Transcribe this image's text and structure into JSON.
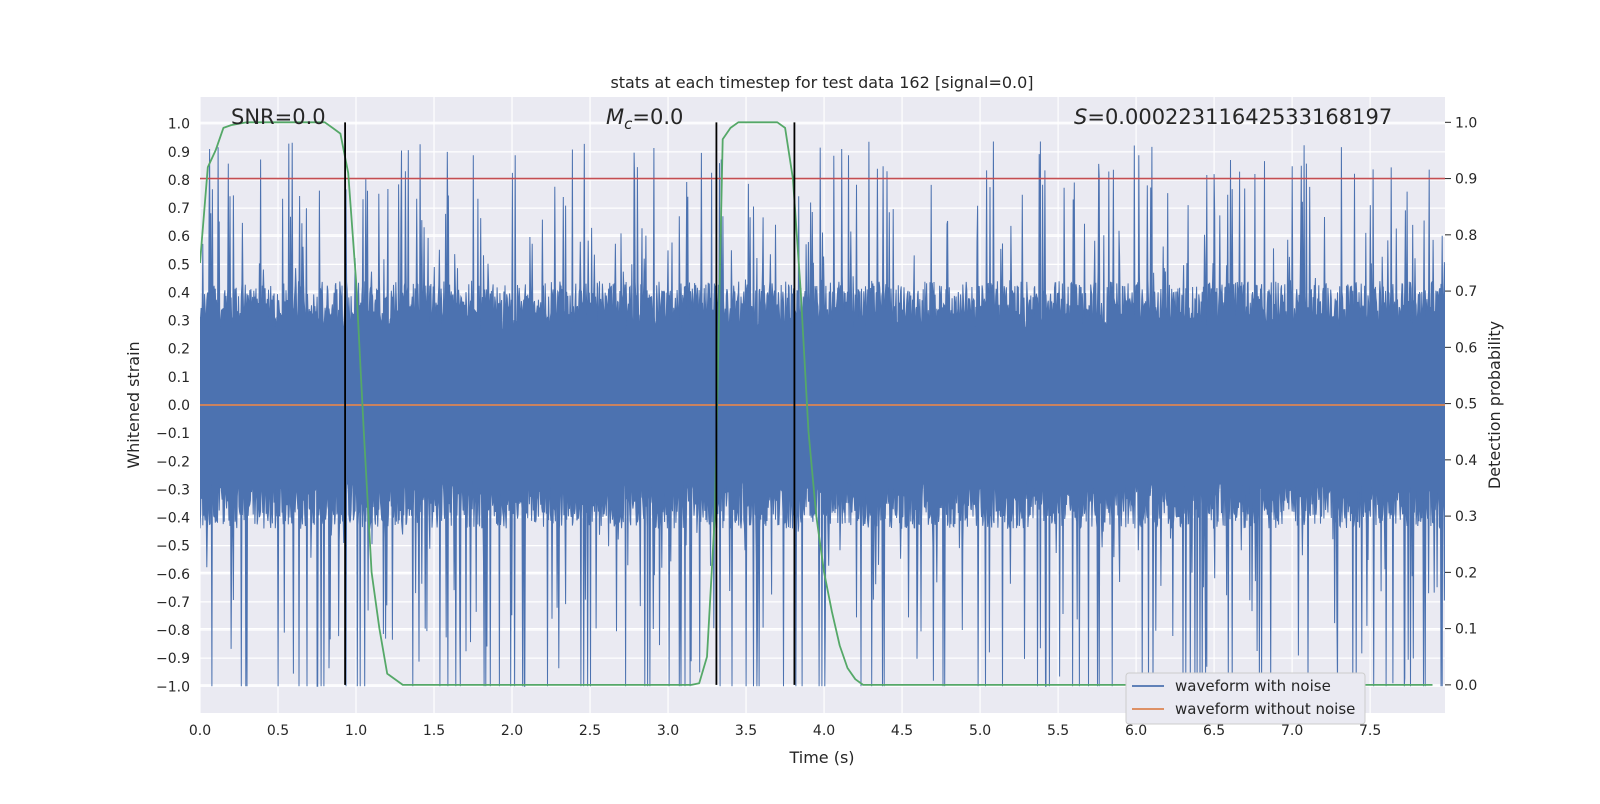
{
  "chart_data": {
    "type": "line",
    "title": "stats at each timestep for test data 162 [signal=0.0]",
    "xlabel": "Time (s)",
    "ylabel": "Whitened strain",
    "ylabel_right": "Detection probability",
    "xlim": [
      0.0,
      7.98
    ],
    "ylim": [
      -1.095,
      1.095
    ],
    "ylim_right": [
      -0.05,
      1.045
    ],
    "x_ticks": [
      "0.0",
      "0.5",
      "1.0",
      "1.5",
      "2.0",
      "2.5",
      "3.0",
      "3.5",
      "4.0",
      "4.5",
      "5.0",
      "5.5",
      "6.0",
      "6.5",
      "7.0",
      "7.5"
    ],
    "y_ticks": [
      "1.0",
      "0.9",
      "0.8",
      "0.7",
      "0.6",
      "0.5",
      "0.4",
      "0.3",
      "0.2",
      "0.1",
      "0.0",
      "−0.1",
      "−0.2",
      "−0.3",
      "−0.4",
      "−0.5",
      "−0.6",
      "−0.7",
      "−0.8",
      "−0.9",
      "−1.0"
    ],
    "y_right_ticks": [
      "1.0",
      "0.9",
      "0.8",
      "0.7",
      "0.6",
      "0.5",
      "0.4",
      "0.3",
      "0.2",
      "0.1",
      "0.0"
    ],
    "grid": true,
    "annotations": {
      "snr": "SNR=0.0",
      "mc_symbol": "M",
      "mc_subscript": "c",
      "mc_value": "=0.0",
      "s_symbol": "S",
      "s_value": "=0.00022311642533168197"
    },
    "series": [
      {
        "name": "waveform with noise",
        "color": "#4c72b0",
        "kind": "noise-band",
        "typical_amplitude": 0.4,
        "max": 1.0,
        "min": -1.0
      },
      {
        "name": "waveform without noise",
        "color": "#dd8452",
        "kind": "constant",
        "value": 0.0
      },
      {
        "name": "detection probability",
        "color": "#55a868",
        "axis": "right",
        "x": [
          0.0,
          0.05,
          0.1,
          0.15,
          0.2,
          0.3,
          0.4,
          0.5,
          0.6,
          0.7,
          0.8,
          0.85,
          0.9,
          0.95,
          1.0,
          1.05,
          1.1,
          1.15,
          1.2,
          1.3,
          1.5,
          2.0,
          2.5,
          3.0,
          3.15,
          3.2,
          3.25,
          3.3,
          3.35,
          3.4,
          3.45,
          3.5,
          3.6,
          3.7,
          3.75,
          3.8,
          3.85,
          3.9,
          3.95,
          4.0,
          4.05,
          4.1,
          4.15,
          4.2,
          4.25,
          4.3,
          5.0,
          6.0,
          7.0,
          7.9
        ],
        "y": [
          0.75,
          0.92,
          0.95,
          0.99,
          0.995,
          1.0,
          1.0,
          1.0,
          1.0,
          1.0,
          1.0,
          0.99,
          0.98,
          0.91,
          0.72,
          0.45,
          0.2,
          0.1,
          0.02,
          0.0,
          0.0,
          0.0,
          0.0,
          0.0,
          0.0,
          0.003,
          0.05,
          0.3,
          0.97,
          0.99,
          1.0,
          1.0,
          1.0,
          1.0,
          0.99,
          0.9,
          0.7,
          0.45,
          0.3,
          0.2,
          0.13,
          0.07,
          0.03,
          0.01,
          0.0,
          0.0,
          0.0,
          0.0,
          0.0,
          0.0
        ]
      },
      {
        "name": "threshold",
        "color": "#c44e52",
        "axis": "right",
        "kind": "constant",
        "value": 0.9
      }
    ],
    "vertical_lines": [
      0.93,
      3.31,
      3.81
    ],
    "legend": {
      "placement": "lower-right",
      "entries": [
        {
          "label": "waveform with noise",
          "color": "#4c72b0"
        },
        {
          "label": "waveform without noise",
          "color": "#dd8452"
        }
      ]
    }
  }
}
